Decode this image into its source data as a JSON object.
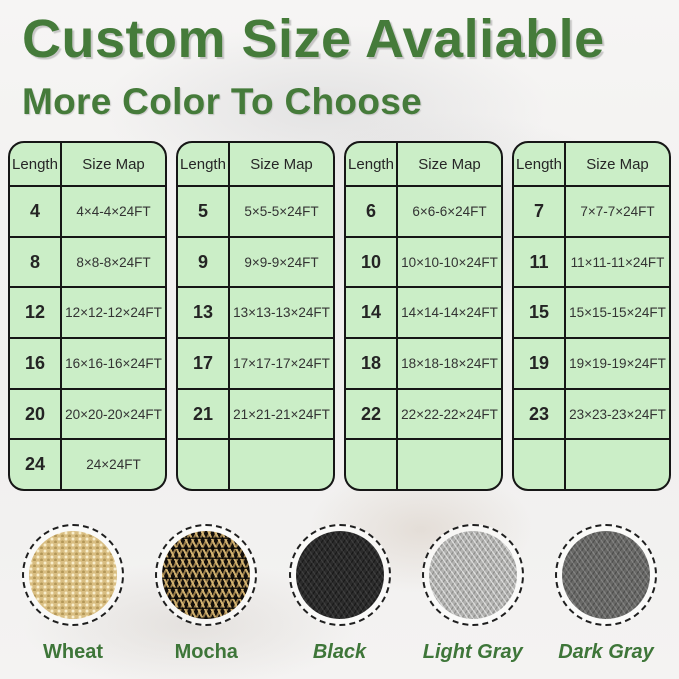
{
  "header": {
    "title": "Custom Size Avaliable",
    "subtitle": "More Color To Choose"
  },
  "colors": {
    "heading_green": "#457b3a",
    "label_green": "#3e7639",
    "table_cell_green": "#cbeec7",
    "table_border": "#161616",
    "wheat_hex": "#d9be82",
    "mocha_hex": "#171310",
    "black_hex": "#2b2b2b",
    "light_gray_hex": "#b2b2b0",
    "dark_gray_hex": "#686866"
  },
  "tables": [
    {
      "headers": [
        "Length",
        "Size Map"
      ],
      "rows": [
        {
          "length": "4",
          "size": "4×4-4×24FT"
        },
        {
          "length": "8",
          "size": "8×8-8×24FT"
        },
        {
          "length": "12",
          "size": "12×12-12×24FT"
        },
        {
          "length": "16",
          "size": "16×16-16×24FT"
        },
        {
          "length": "20",
          "size": "20×20-20×24FT"
        },
        {
          "length": "24",
          "size": "24×24FT"
        }
      ]
    },
    {
      "headers": [
        "Length",
        "Size Map"
      ],
      "rows": [
        {
          "length": "5",
          "size": "5×5-5×24FT"
        },
        {
          "length": "9",
          "size": "9×9-9×24FT"
        },
        {
          "length": "13",
          "size": "13×13-13×24FT"
        },
        {
          "length": "17",
          "size": "17×17-17×24FT"
        },
        {
          "length": "21",
          "size": "21×21-21×24FT"
        },
        {
          "length": "",
          "size": ""
        }
      ]
    },
    {
      "headers": [
        "Length",
        "Size Map"
      ],
      "rows": [
        {
          "length": "6",
          "size": "6×6-6×24FT"
        },
        {
          "length": "10",
          "size": "10×10-10×24FT"
        },
        {
          "length": "14",
          "size": "14×14-14×24FT"
        },
        {
          "length": "18",
          "size": "18×18-18×24FT"
        },
        {
          "length": "22",
          "size": "22×22-22×24FT"
        },
        {
          "length": "",
          "size": ""
        }
      ]
    },
    {
      "headers": [
        "Length",
        "Size Map"
      ],
      "rows": [
        {
          "length": "7",
          "size": "7×7-7×24FT"
        },
        {
          "length": "11",
          "size": "11×11-11×24FT"
        },
        {
          "length": "15",
          "size": "15×15-15×24FT"
        },
        {
          "length": "19",
          "size": "19×19-19×24FT"
        },
        {
          "length": "23",
          "size": "23×23-23×24FT"
        },
        {
          "length": "",
          "size": ""
        }
      ]
    }
  ],
  "swatches": [
    {
      "label": "Wheat"
    },
    {
      "label": "Mocha"
    },
    {
      "label": "Black"
    },
    {
      "label": "Light Gray"
    },
    {
      "label": "Dark Gray"
    }
  ]
}
